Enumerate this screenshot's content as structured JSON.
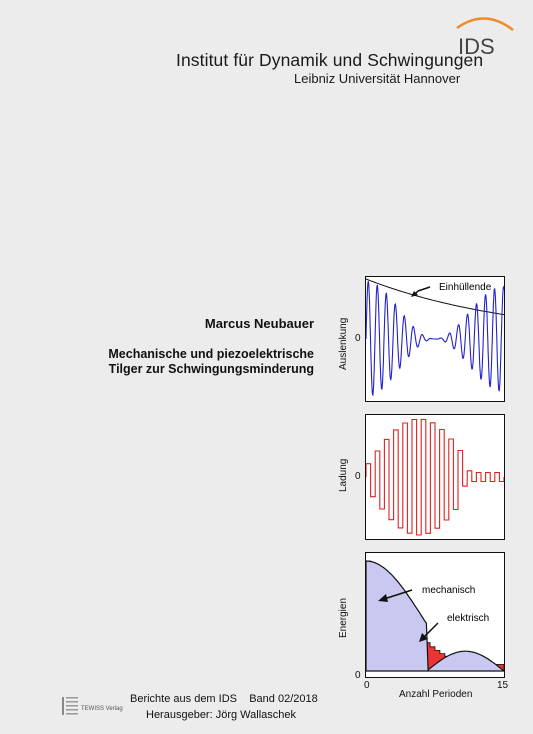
{
  "header": {
    "logo_text": "IDS",
    "institute": "Institut für Dynamik und Schwingungen",
    "university": "Leibniz Universität Hannover"
  },
  "book": {
    "author": "Marcus Neubauer",
    "title_line1": "Mechanische und piezoelektrische",
    "title_line2": "Tilger zur Schwingungsminderung"
  },
  "figures": {
    "chart1": {
      "ylabel": "Auslenkung",
      "zero": "0",
      "annotation": "Einhüllende"
    },
    "chart2": {
      "ylabel": "Ladung",
      "zero": "0"
    },
    "chart3": {
      "ylabel": "Energien",
      "x_start": "0",
      "x_end": "15",
      "xlabel": "Anzahl Perioden",
      "label_mech": "mechanisch",
      "label_elec": "elektrisch"
    }
  },
  "chart_data": [
    {
      "type": "line",
      "ylabel": "Auslenkung",
      "annotations": [
        "Einhüllende"
      ],
      "series_color": "#2222cc"
    },
    {
      "type": "line",
      "ylabel": "Ladung",
      "series_color": "#dd2222"
    },
    {
      "type": "area",
      "ylabel": "Energien",
      "xlabel": "Anzahl Perioden",
      "xlim": [
        0,
        15
      ],
      "series": [
        {
          "name": "mechanisch",
          "color": "#ee3333"
        },
        {
          "name": "elektrisch",
          "color": "#c8c8f0"
        }
      ]
    }
  ],
  "footer": {
    "series": "Berichte aus dem IDS    Band 02/2018",
    "editor": "Herausgeber: Jörg Wallaschek",
    "publisher": "TEWISS Verlag"
  }
}
